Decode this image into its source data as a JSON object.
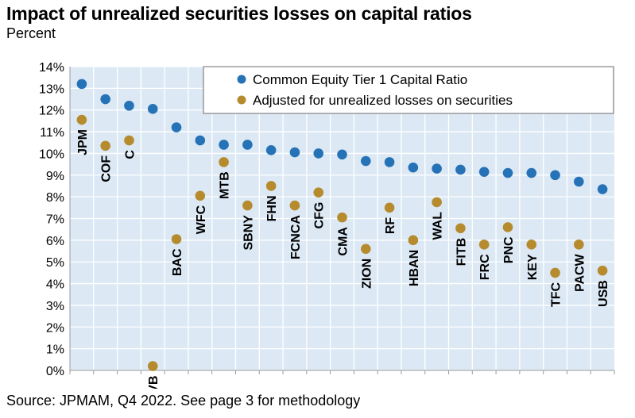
{
  "title": "Impact of unrealized securities losses on capital ratios",
  "subtitle": "Percent",
  "source": "Source: JPMAM, Q4 2022. See page 3 for methodology",
  "colors": {
    "cet1": "#2672B6",
    "adjusted": "#B58B2E",
    "grid_bg": "#DCE9F5"
  },
  "chart_data": {
    "type": "scatter",
    "categories": [
      "JPM",
      "COF",
      "C",
      "SIVB",
      "BAC",
      "WFC",
      "MTB",
      "SBNY",
      "FHN",
      "FCNCA",
      "CFG",
      "CMA",
      "ZION",
      "RF",
      "HBAN",
      "WAL",
      "FITB",
      "FRC",
      "PNC",
      "KEY",
      "TFC",
      "PACW",
      "USB"
    ],
    "series": [
      {
        "name": "Common Equity Tier 1 Capital Ratio",
        "color": "#2672B6",
        "values": [
          13.2,
          12.5,
          12.2,
          12.05,
          11.2,
          10.6,
          10.4,
          10.4,
          10.15,
          10.05,
          10.0,
          9.95,
          9.65,
          9.6,
          9.35,
          9.3,
          9.25,
          9.15,
          9.1,
          9.1,
          9.0,
          8.7,
          8.35
        ]
      },
      {
        "name": "Adjusted for unrealized losses on securities",
        "color": "#B58B2E",
        "values": [
          11.55,
          10.35,
          10.6,
          0.2,
          6.05,
          8.05,
          9.6,
          7.6,
          8.5,
          7.6,
          8.2,
          7.05,
          5.6,
          7.5,
          6.0,
          7.75,
          6.55,
          5.8,
          6.6,
          5.8,
          4.5,
          5.8,
          4.6
        ]
      }
    ],
    "y_ticks": [
      "0%",
      "1%",
      "2%",
      "3%",
      "4%",
      "5%",
      "6%",
      "7%",
      "8%",
      "9%",
      "10%",
      "11%",
      "12%",
      "13%",
      "14%"
    ],
    "ylim": [
      0,
      14
    ],
    "xlabel": "",
    "ylabel": "",
    "grid": true,
    "legend_position": "top-right"
  }
}
